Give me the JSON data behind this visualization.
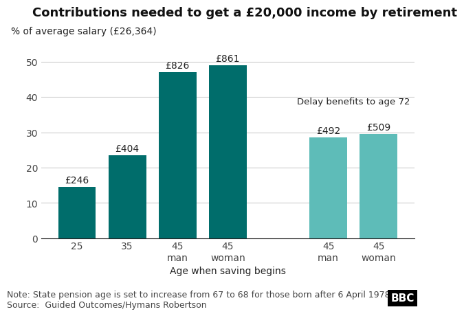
{
  "title": "Contributions needed to get a £20,000 income by retirement",
  "ylabel": "% of average salary (£26,364)",
  "xlabel": "Age when saving begins",
  "bar_labels": [
    "25",
    "35",
    "45\nman",
    "45\nwoman",
    "45\nman",
    "45\nwoman"
  ],
  "bar_values": [
    14.5,
    23.5,
    47.0,
    49.0,
    28.5,
    29.5
  ],
  "bar_annotations": [
    "£246",
    "£404",
    "£826",
    "£861",
    "£492",
    "£509"
  ],
  "bar_colors_dark": "#006d6b",
  "bar_colors_light": "#5ebcb8",
  "dark_bars": [
    0,
    1,
    2,
    3
  ],
  "light_bars": [
    4,
    5
  ],
  "delay_label": "Delay benefits to age 72",
  "ylim": [
    0,
    55
  ],
  "yticks": [
    0,
    10,
    20,
    30,
    40,
    50
  ],
  "note": "Note: State pension age is set to increase from 67 to 68 for those born after 6 April 1978",
  "source": "Source:  Guided Outcomes/Hymans Robertson",
  "bbc_text": "BBC",
  "background_color": "#ffffff",
  "grid_color": "#cccccc",
  "title_fontsize": 13,
  "label_fontsize": 10,
  "annotation_fontsize": 10,
  "note_fontsize": 9
}
